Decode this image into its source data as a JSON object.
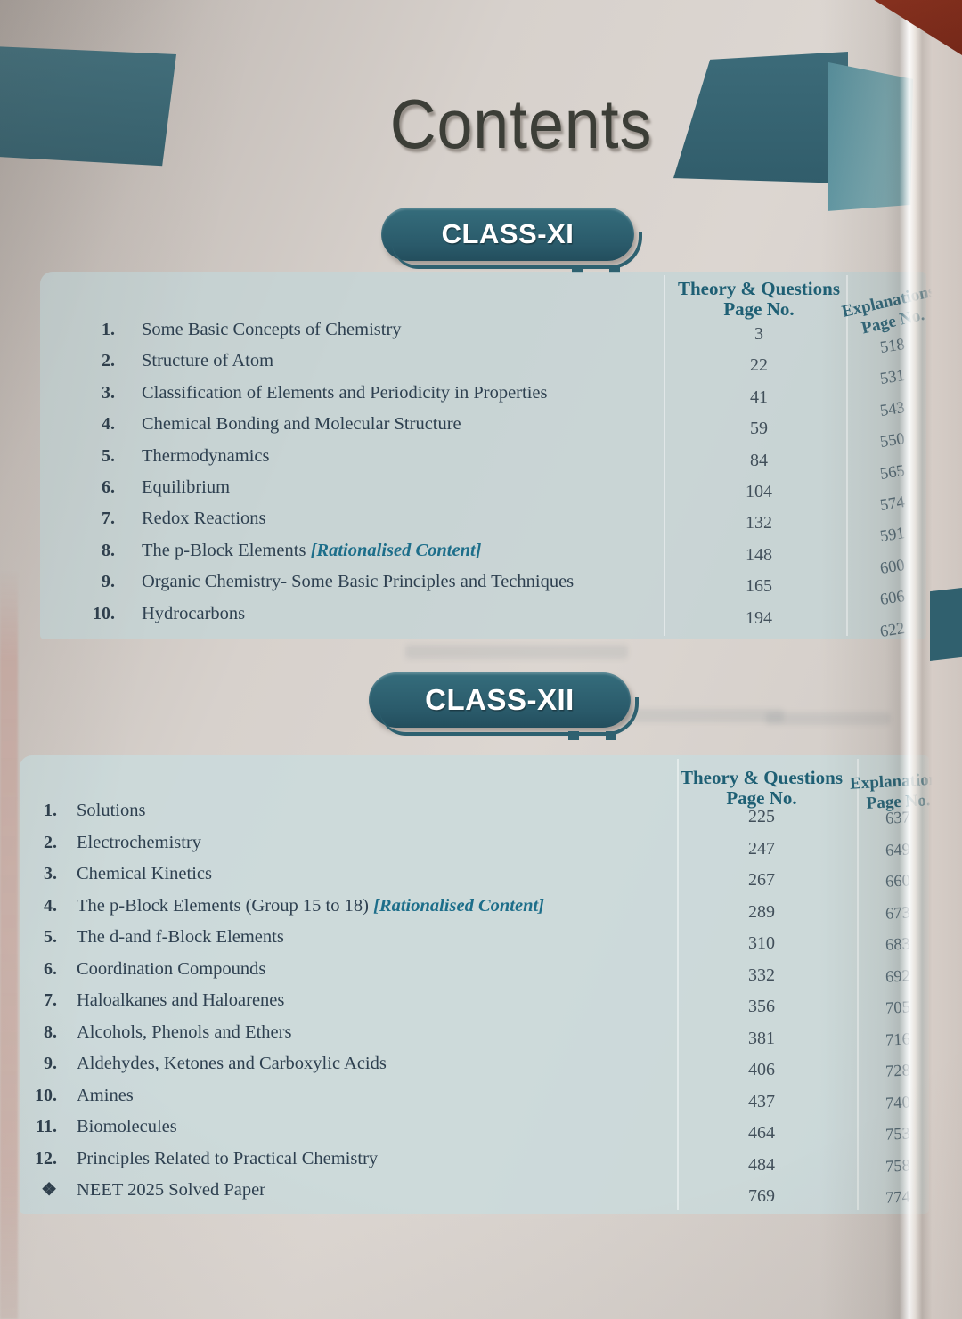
{
  "page_title": "Contents",
  "sections": [
    {
      "badge": "CLASS-XI",
      "header": {
        "theory_line1": "Theory & Questions",
        "theory_line2": "Page No.",
        "expl_line1": "Explanations",
        "expl_line2": "Page No."
      },
      "rows": [
        {
          "no": "1.",
          "title": "Some Basic Concepts of Chemistry",
          "theory": "3",
          "expl": "518"
        },
        {
          "no": "2.",
          "title": "Structure of Atom",
          "theory": "22",
          "expl": "531"
        },
        {
          "no": "3.",
          "title": "Classification of Elements and Periodicity in Properties",
          "theory": "41",
          "expl": "543"
        },
        {
          "no": "4.",
          "title": "Chemical Bonding and Molecular Structure",
          "theory": "59",
          "expl": "550"
        },
        {
          "no": "5.",
          "title": "Thermodynamics",
          "theory": "84",
          "expl": "565"
        },
        {
          "no": "6.",
          "title": "Equilibrium",
          "theory": "104",
          "expl": "574"
        },
        {
          "no": "7.",
          "title": "Redox Reactions",
          "theory": "132",
          "expl": "591"
        },
        {
          "no": "8.",
          "title": "The p-Block Elements ",
          "tag": "[Rationalised Content]",
          "theory": "148",
          "expl": "600"
        },
        {
          "no": "9.",
          "title": "Organic Chemistry- Some Basic Principles and Techniques",
          "theory": "165",
          "expl": "606"
        },
        {
          "no": "10.",
          "title": "Hydrocarbons",
          "theory": "194",
          "expl": "622"
        }
      ]
    },
    {
      "badge": "CLASS-XII",
      "header": {
        "theory_line1": "Theory & Questions",
        "theory_line2": "Page No.",
        "expl_line1": "Explanations",
        "expl_line2": "Page No."
      },
      "rows": [
        {
          "no": "1.",
          "title": "Solutions",
          "theory": "225",
          "expl": "637"
        },
        {
          "no": "2.",
          "title": "Electrochemistry",
          "theory": "247",
          "expl": "649"
        },
        {
          "no": "3.",
          "title": "Chemical Kinetics",
          "theory": "267",
          "expl": "660"
        },
        {
          "no": "4.",
          "title": "The p-Block Elements (Group 15 to 18) ",
          "tag": "[Rationalised Content]",
          "theory": "289",
          "expl": "673"
        },
        {
          "no": "5.",
          "title": "The d-and f-Block Elements",
          "theory": "310",
          "expl": "683"
        },
        {
          "no": "6.",
          "title": "Coordination Compounds",
          "theory": "332",
          "expl": "692"
        },
        {
          "no": "7.",
          "title": "Haloalkanes and Haloarenes",
          "theory": "356",
          "expl": "705"
        },
        {
          "no": "8.",
          "title": "Alcohols, Phenols and Ethers",
          "theory": "381",
          "expl": "716"
        },
        {
          "no": "9.",
          "title": "Aldehydes, Ketones and Carboxylic Acids",
          "theory": "406",
          "expl": "728"
        },
        {
          "no": "10.",
          "title": "Amines",
          "theory": "437",
          "expl": "740"
        },
        {
          "no": "11.",
          "title": "Biomolecules",
          "theory": "464",
          "expl": "753"
        },
        {
          "no": "12.",
          "title": "Principles Related to Practical Chemistry",
          "theory": "484",
          "expl": "758"
        },
        {
          "no": "❖",
          "title": "NEET 2025 Solved Paper",
          "theory": "769",
          "expl": "774"
        }
      ]
    }
  ],
  "colors": {
    "banner_teal": "#3b6573",
    "pill_teal": "#2b5c6c",
    "curl_teal_light": "#74a7b0",
    "table_header_text": "#1e5f74",
    "body_text": "#2e4050",
    "page_number_text": "#414f5a",
    "rationalised_tag": "#1d6e8a",
    "backdrop_red": "#7c2b1b",
    "table_background": "#cbd8da"
  }
}
